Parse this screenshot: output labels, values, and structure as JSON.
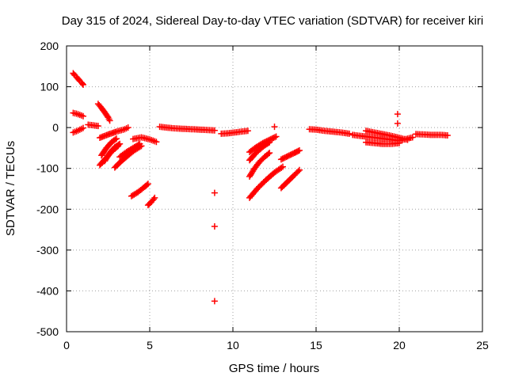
{
  "chart_data": {
    "type": "scatter",
    "title": "Day 315 of 2024, Sidereal Day-to-day VTEC variation (SDTVAR) for receiver kiri",
    "xlabel": "GPS time / hours",
    "ylabel": "SDTVAR / TECUs",
    "xlim": [
      0,
      25
    ],
    "ylim": [
      -500,
      200
    ],
    "xticks": [
      0,
      5,
      10,
      15,
      20,
      25
    ],
    "yticks": [
      200,
      100,
      0,
      -100,
      -200,
      -300,
      -400,
      -500
    ],
    "grid": true,
    "legend": "none",
    "marker": "plus",
    "color": "#ff0000",
    "series": [
      {
        "x": [
          0.4,
          0.5,
          0.6,
          0.7,
          0.8,
          0.9,
          1.0
        ],
        "y": [
          133,
          128,
          124,
          119,
          114,
          110,
          105
        ]
      },
      {
        "x": [
          0.4,
          0.6,
          0.8,
          1.0
        ],
        "y": [
          36,
          34,
          31,
          28
        ]
      },
      {
        "x": [
          0.4,
          0.6,
          0.8,
          1.0
        ],
        "y": [
          -12,
          -9,
          -5,
          -1
        ]
      },
      {
        "x": [
          1.3,
          1.5,
          1.7,
          1.9
        ],
        "y": [
          7,
          6,
          5,
          4
        ]
      },
      {
        "x": [
          1.9,
          2.1,
          2.3,
          2.5,
          2.6
        ],
        "y": [
          58,
          48,
          37,
          25,
          17
        ]
      },
      {
        "x": [
          2.0,
          2.5,
          3.0,
          3.5,
          3.7
        ],
        "y": [
          -25,
          -17,
          -10,
          -4,
          0
        ]
      },
      {
        "x": [
          2.0,
          2.3,
          2.6,
          2.9,
          3.1
        ],
        "y": [
          -92,
          -78,
          -64,
          -52,
          -45
        ]
      },
      {
        "x": [
          2.1,
          2.4,
          2.7,
          3.0
        ],
        "y": [
          -68,
          -50,
          -36,
          -27
        ]
      },
      {
        "x": [
          2.3,
          2.6,
          2.9,
          3.2
        ],
        "y": [
          -82,
          -62,
          -48,
          -40
        ]
      },
      {
        "x": [
          2.9,
          3.3,
          3.7,
          4.1,
          4.5
        ],
        "y": [
          -98,
          -82,
          -68,
          -55,
          -45
        ]
      },
      {
        "x": [
          3.2,
          3.6,
          4.0,
          4.4
        ],
        "y": [
          -72,
          -60,
          -50,
          -40
        ]
      },
      {
        "x": [
          4.0,
          4.5,
          5.0,
          5.4
        ],
        "y": [
          -28,
          -24,
          -29,
          -35
        ]
      },
      {
        "x": [
          3.9,
          4.3,
          4.7,
          4.9
        ],
        "y": [
          -168,
          -158,
          -145,
          -138
        ]
      },
      {
        "x": [
          4.9,
          5.1,
          5.3
        ],
        "y": [
          -190,
          -182,
          -172
        ]
      },
      {
        "x": [
          5.6,
          6.0,
          6.5,
          7.0,
          7.5,
          8.0,
          8.5,
          8.9
        ],
        "y": [
          2,
          0,
          -2,
          -3,
          -4,
          -5,
          -6,
          -7
        ]
      },
      {
        "x": [
          8.9
        ],
        "y": [
          -160
        ]
      },
      {
        "x": [
          8.9
        ],
        "y": [
          -242
        ]
      },
      {
        "x": [
          8.9
        ],
        "y": [
          -425
        ]
      },
      {
        "x": [
          9.3,
          9.7,
          10.1,
          10.5,
          10.9
        ],
        "y": [
          -15,
          -14,
          -12,
          -10,
          -8
        ]
      },
      {
        "x": [
          11.0,
          11.4,
          11.8,
          12.2,
          12.6
        ],
        "y": [
          -60,
          -48,
          -38,
          -30,
          -22
        ]
      },
      {
        "x": [
          11.0,
          11.3,
          11.6,
          11.9,
          12.2
        ],
        "y": [
          -80,
          -66,
          -54,
          -44,
          -36
        ]
      },
      {
        "x": [
          11.0,
          11.3,
          11.6,
          11.9,
          12.2
        ],
        "y": [
          -120,
          -100,
          -84,
          -72,
          -62
        ]
      },
      {
        "x": [
          11.0,
          11.5,
          12.0,
          12.5,
          13.0
        ],
        "y": [
          -172,
          -148,
          -128,
          -110,
          -96
        ]
      },
      {
        "x": [
          12.5
        ],
        "y": [
          2
        ]
      },
      {
        "x": [
          12.9,
          13.3,
          13.7,
          14.0
        ],
        "y": [
          -78,
          -70,
          -62,
          -56
        ]
      },
      {
        "x": [
          12.9,
          13.3,
          13.7,
          14.0
        ],
        "y": [
          -148,
          -132,
          -116,
          -104
        ]
      },
      {
        "x": [
          14.6,
          15.0,
          15.5,
          16.0,
          16.5,
          17.0
        ],
        "y": [
          -4,
          -5,
          -8,
          -10,
          -12,
          -15
        ]
      },
      {
        "x": [
          17.2,
          17.6,
          18.0,
          18.4,
          18.8,
          19.2,
          19.6,
          20.0,
          20.4,
          20.8
        ],
        "y": [
          -18,
          -20,
          -22,
          -24,
          -26,
          -28,
          -30,
          -32,
          -28,
          -24
        ]
      },
      {
        "x": [
          18.0,
          18.5,
          19.0,
          19.5,
          20.0,
          20.5
        ],
        "y": [
          -8,
          -12,
          -16,
          -20,
          -25,
          -30
        ]
      },
      {
        "x": [
          18.0,
          18.5,
          19.0,
          19.5,
          20.0
        ],
        "y": [
          -36,
          -38,
          -40,
          -40,
          -38
        ]
      },
      {
        "x": [
          19.9
        ],
        "y": [
          33
        ]
      },
      {
        "x": [
          19.9
        ],
        "y": [
          10
        ]
      },
      {
        "x": [
          21.0,
          21.5,
          22.0,
          22.5,
          22.9
        ],
        "y": [
          -16,
          -17,
          -18,
          -18,
          -19
        ]
      }
    ]
  }
}
